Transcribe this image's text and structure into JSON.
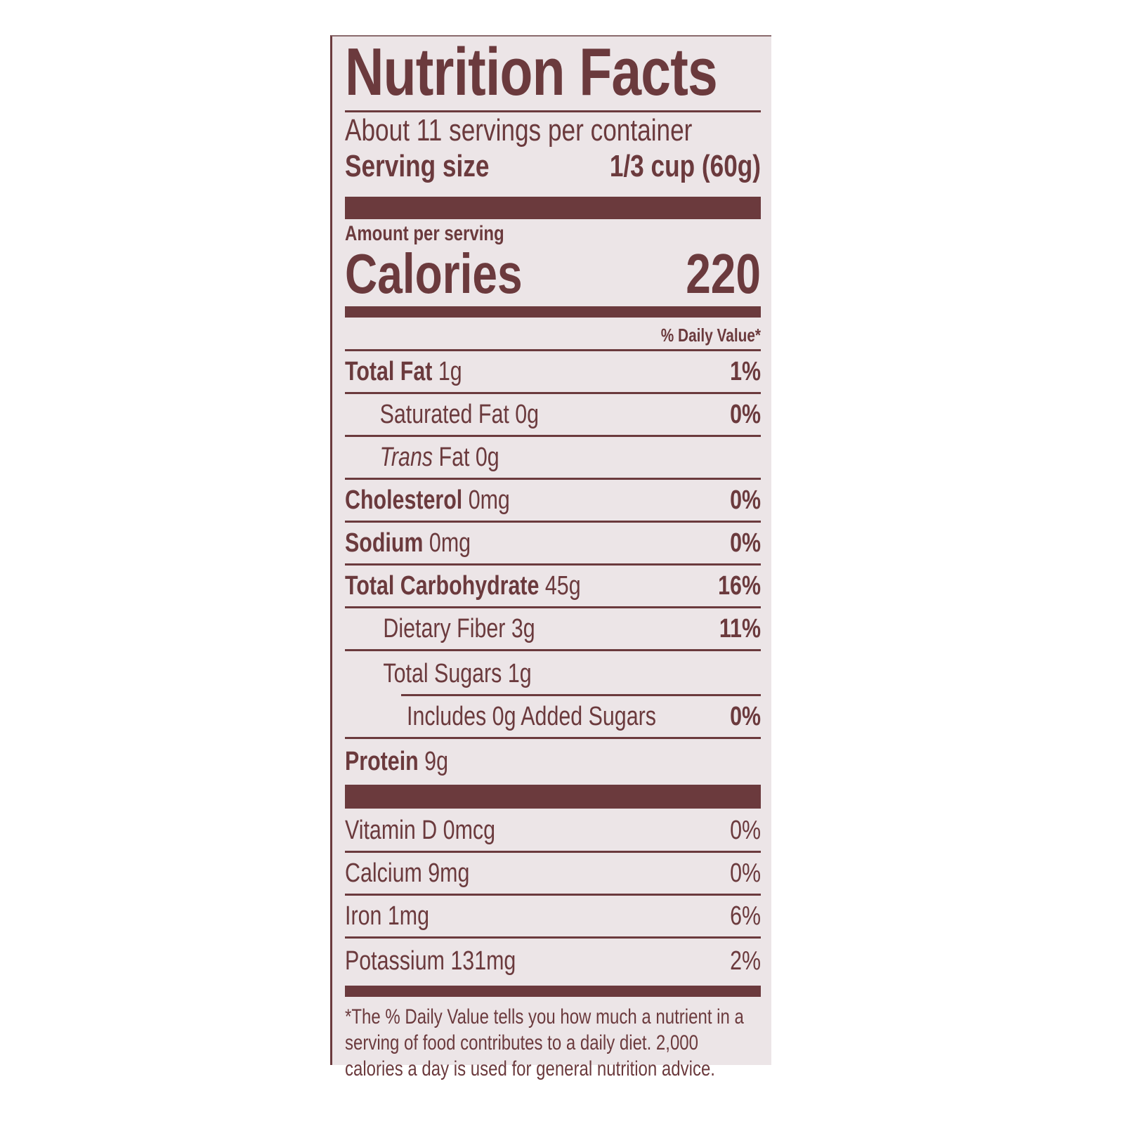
{
  "title": "Nutrition Facts",
  "servings_per_container": "About 11 servings per container",
  "serving_size": {
    "label": "Serving size",
    "value": "1/3 cup (60g)"
  },
  "amount_per_serving": "Amount per serving",
  "calories": {
    "label": "Calories",
    "value": "220"
  },
  "daily_value_header": "% Daily Value*",
  "nutrients": [
    {
      "name": "Total Fat",
      "amount": "1g",
      "dv": "1%"
    },
    {
      "name": "Saturated Fat",
      "amount": "0g",
      "dv": "0%"
    },
    {
      "name": "Trans",
      "suffix": "Fat",
      "amount": "0g",
      "dv": ""
    },
    {
      "name": "Cholesterol",
      "amount": "0mg",
      "dv": "0%"
    },
    {
      "name": "Sodium",
      "amount": "0mg",
      "dv": "0%"
    },
    {
      "name": "Total Carbohydrate",
      "amount": "45g",
      "dv": "16%"
    },
    {
      "name": "Dietary Fiber",
      "amount": "3g",
      "dv": "11%"
    },
    {
      "name": "Total Sugars",
      "amount": "1g",
      "dv": ""
    },
    {
      "name": "Includes 0g Added Sugars",
      "amount": "",
      "dv": "0%"
    },
    {
      "name": "Protein",
      "amount": "9g",
      "dv": ""
    }
  ],
  "vitamins": [
    {
      "name": "Vitamin D",
      "amount": "0mcg",
      "dv": "0%"
    },
    {
      "name": "Calcium",
      "amount": "9mg",
      "dv": "0%"
    },
    {
      "name": "Iron",
      "amount": "1mg",
      "dv": "6%"
    },
    {
      "name": "Potassium",
      "amount": "131mg",
      "dv": "2%"
    }
  ],
  "footnote": "*The % Daily Value tells you how much a nutrient in a serving of food contributes to a daily diet. 2,000 calories a day is used for general nutrition advice.",
  "colors": {
    "ink": "#6b3a3d",
    "background": "#ece5e7"
  }
}
